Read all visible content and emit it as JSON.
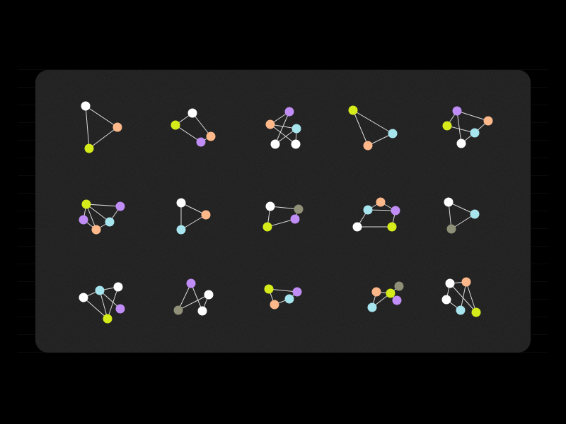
{
  "colors": {
    "background": "#000000",
    "panel": "#1b1b1b",
    "edge": "#dcdcdc",
    "node_palette": {
      "white": "#ffffff",
      "orange": "#ffb88a",
      "yellow": "#d6ec1a",
      "purple": "#c08cf6",
      "cyan": "#a6e4ee",
      "olive": "#8f9077"
    }
  },
  "graphs": [
    {
      "name": "graph-r1-c1",
      "nodes": 3,
      "edges": 3,
      "node_colors": [
        "white",
        "orange",
        "yellow"
      ]
    },
    {
      "name": "graph-r1-c2",
      "nodes": 4,
      "edges": 4,
      "node_colors": [
        "white",
        "yellow",
        "orange",
        "purple"
      ]
    },
    {
      "name": "graph-r1-c3",
      "nodes": 5,
      "edges": 6,
      "node_colors": [
        "purple",
        "orange",
        "cyan",
        "white",
        "white"
      ]
    },
    {
      "name": "graph-r1-c4",
      "nodes": 3,
      "edges": 3,
      "node_colors": [
        "yellow",
        "cyan",
        "orange"
      ]
    },
    {
      "name": "graph-r1-c5",
      "nodes": 5,
      "edges": 6,
      "node_colors": [
        "purple",
        "orange",
        "yellow",
        "cyan",
        "white"
      ]
    },
    {
      "name": "graph-r2-c1",
      "nodes": 5,
      "edges": 7,
      "node_colors": [
        "yellow",
        "purple",
        "purple",
        "cyan",
        "orange"
      ]
    },
    {
      "name": "graph-r2-c2",
      "nodes": 3,
      "edges": 3,
      "node_colors": [
        "white",
        "orange",
        "cyan"
      ]
    },
    {
      "name": "graph-r2-c3",
      "nodes": 4,
      "edges": 4,
      "node_colors": [
        "white",
        "olive",
        "yellow",
        "purple"
      ]
    },
    {
      "name": "graph-r2-c4",
      "nodes": 5,
      "edges": 6,
      "node_colors": [
        "orange",
        "cyan",
        "purple",
        "white",
        "yellow"
      ]
    },
    {
      "name": "graph-r2-c5",
      "nodes": 3,
      "edges": 3,
      "node_colors": [
        "white",
        "cyan",
        "olive"
      ]
    },
    {
      "name": "graph-r3-c1",
      "nodes": 5,
      "edges": 6,
      "node_colors": [
        "white",
        "cyan",
        "white",
        "purple",
        "yellow"
      ]
    },
    {
      "name": "graph-r3-c2",
      "nodes": 4,
      "edges": 4,
      "node_colors": [
        "purple",
        "white",
        "olive",
        "white"
      ]
    },
    {
      "name": "graph-r3-c3",
      "nodes": 4,
      "edges": 4,
      "node_colors": [
        "yellow",
        "purple",
        "cyan",
        "orange"
      ]
    },
    {
      "name": "graph-r3-c4",
      "nodes": 5,
      "edges": 5,
      "node_colors": [
        "orange",
        "yellow",
        "olive",
        "purple",
        "cyan"
      ]
    },
    {
      "name": "graph-r3-c5",
      "nodes": 5,
      "edges": 6,
      "node_colors": [
        "white",
        "orange",
        "white",
        "cyan",
        "yellow"
      ]
    }
  ]
}
